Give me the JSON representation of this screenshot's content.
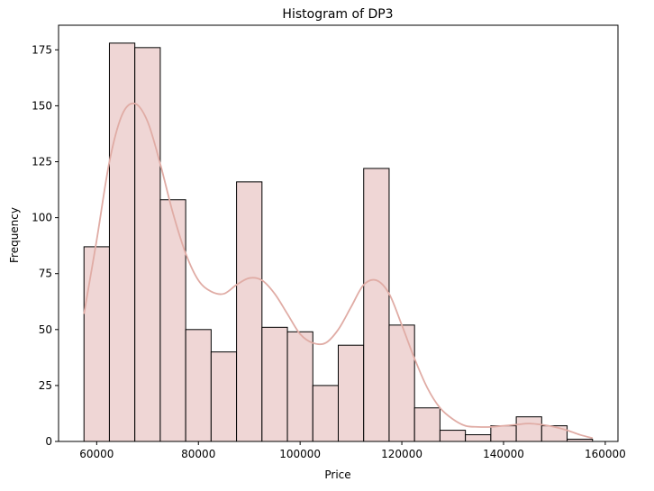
{
  "chart_data": {
    "type": "bar",
    "title": "Histogram of DP3",
    "xlabel": "Price",
    "ylabel": "Frequency",
    "xlim": [
      52500,
      162500
    ],
    "ylim": [
      0,
      186
    ],
    "xticks": [
      60000,
      80000,
      100000,
      120000,
      140000,
      160000
    ],
    "yticks": [
      0,
      25,
      50,
      75,
      100,
      125,
      150,
      175
    ],
    "bin_start": 57500,
    "bin_width": 5000,
    "values": [
      87,
      178,
      176,
      108,
      50,
      40,
      116,
      51,
      49,
      25,
      43,
      122,
      52,
      15,
      5,
      3,
      7,
      11,
      7,
      1
    ],
    "kde": {
      "x": [
        57500,
        60000,
        62500,
        65000,
        67500,
        70000,
        72500,
        75000,
        77500,
        80000,
        82500,
        85000,
        87500,
        90000,
        92500,
        95000,
        97500,
        100000,
        102500,
        105000,
        107500,
        110000,
        112500,
        115000,
        117500,
        120000,
        122500,
        125000,
        127500,
        130000,
        132500,
        135000,
        137500,
        140000,
        142500,
        145000,
        147500,
        150000,
        152500,
        155000,
        157500
      ],
      "y": [
        57,
        90,
        125,
        146,
        151,
        143,
        124,
        102,
        84,
        72,
        67,
        66,
        70,
        73,
        72,
        66,
        57,
        48,
        44,
        44,
        50,
        60,
        70,
        72,
        66,
        52,
        37,
        24,
        15,
        10,
        7,
        6.5,
        6.5,
        7,
        7.5,
        8,
        7.5,
        6.5,
        5,
        3,
        1.5
      ]
    },
    "bar_fill": "#efd6d5",
    "bar_edge": "#000000",
    "kde_color": "#e0aca5",
    "grid": false,
    "legend": "none"
  }
}
